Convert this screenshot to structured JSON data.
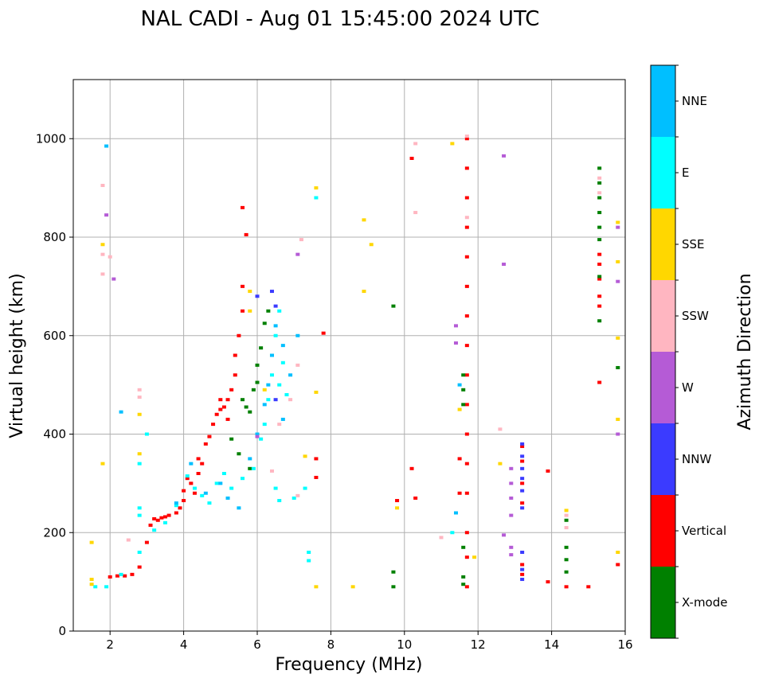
{
  "chart_data": {
    "type": "scatter",
    "title": "NAL CADI - Aug 01 15:45:00 2024 UTC",
    "xlabel": "Frequency (MHz)",
    "ylabel": "Virtual height (km)",
    "xlim": [
      1,
      16
    ],
    "ylim": [
      0,
      1120
    ],
    "xticks": [
      "2",
      "4",
      "6",
      "8",
      "10",
      "12",
      "14",
      "16"
    ],
    "yticks": [
      "0",
      "200",
      "400",
      "600",
      "800",
      "1000"
    ],
    "grid": true,
    "colorbar": {
      "label": "Azimuth Direction",
      "categories": [
        {
          "name": "X-mode",
          "color": "#008000"
        },
        {
          "name": "Vertical",
          "color": "#ff0000"
        },
        {
          "name": "NNW",
          "color": "#3b3bff"
        },
        {
          "name": "W",
          "color": "#b55bd6"
        },
        {
          "name": "SSW",
          "color": "#ffb6c1"
        },
        {
          "name": "SSE",
          "color": "#ffd700"
        },
        {
          "name": "E",
          "color": "#00ffff"
        },
        {
          "name": "NNE",
          "color": "#00bfff"
        }
      ]
    },
    "series": [
      {
        "name": "Vertical",
        "color": "#ff0000",
        "points": [
          [
            2.0,
            110
          ],
          [
            2.2,
            112
          ],
          [
            2.4,
            112
          ],
          [
            2.6,
            115
          ],
          [
            2.8,
            130
          ],
          [
            3.0,
            180
          ],
          [
            3.1,
            215
          ],
          [
            3.2,
            228
          ],
          [
            3.3,
            225
          ],
          [
            3.4,
            230
          ],
          [
            3.5,
            232
          ],
          [
            3.6,
            235
          ],
          [
            3.8,
            240
          ],
          [
            3.9,
            250
          ],
          [
            4.0,
            265
          ],
          [
            4.0,
            285
          ],
          [
            4.1,
            310
          ],
          [
            4.2,
            300
          ],
          [
            4.3,
            280
          ],
          [
            4.4,
            320
          ],
          [
            4.4,
            350
          ],
          [
            4.5,
            340
          ],
          [
            4.6,
            380
          ],
          [
            4.7,
            395
          ],
          [
            4.8,
            420
          ],
          [
            4.9,
            440
          ],
          [
            5.0,
            450
          ],
          [
            5.0,
            470
          ],
          [
            5.1,
            455
          ],
          [
            5.2,
            470
          ],
          [
            5.3,
            490
          ],
          [
            5.2,
            430
          ],
          [
            5.4,
            520
          ],
          [
            5.4,
            560
          ],
          [
            5.5,
            600
          ],
          [
            5.6,
            650
          ],
          [
            5.6,
            700
          ],
          [
            5.7,
            805
          ],
          [
            5.6,
            860
          ],
          [
            7.6,
            350
          ],
          [
            7.6,
            312
          ],
          [
            7.8,
            605
          ],
          [
            9.8,
            265
          ],
          [
            10.2,
            960
          ],
          [
            10.2,
            330
          ],
          [
            10.3,
            270
          ],
          [
            11.5,
            350
          ],
          [
            11.5,
            280
          ],
          [
            11.7,
            1000
          ],
          [
            11.7,
            940
          ],
          [
            11.7,
            880
          ],
          [
            11.7,
            820
          ],
          [
            11.7,
            760
          ],
          [
            11.7,
            700
          ],
          [
            11.7,
            640
          ],
          [
            11.7,
            580
          ],
          [
            11.7,
            520
          ],
          [
            11.7,
            460
          ],
          [
            11.7,
            400
          ],
          [
            11.7,
            340
          ],
          [
            11.7,
            280
          ],
          [
            11.7,
            200
          ],
          [
            11.7,
            150
          ],
          [
            11.7,
            90
          ],
          [
            13.2,
            375
          ],
          [
            13.2,
            345
          ],
          [
            13.2,
            300
          ],
          [
            13.2,
            260
          ],
          [
            13.2,
            135
          ],
          [
            13.2,
            115
          ],
          [
            13.9,
            325
          ],
          [
            13.9,
            100
          ],
          [
            14.4,
            90
          ],
          [
            15.0,
            90
          ],
          [
            15.3,
            505
          ],
          [
            15.3,
            765
          ],
          [
            15.3,
            745
          ],
          [
            15.3,
            715
          ],
          [
            15.3,
            680
          ],
          [
            15.3,
            660
          ],
          [
            15.8,
            135
          ]
        ]
      },
      {
        "name": "X-mode",
        "color": "#008000",
        "points": [
          [
            5.3,
            390
          ],
          [
            5.5,
            360
          ],
          [
            5.6,
            470
          ],
          [
            5.7,
            455
          ],
          [
            5.8,
            445
          ],
          [
            5.9,
            490
          ],
          [
            5.8,
            330
          ],
          [
            6.0,
            505
          ],
          [
            6.0,
            540
          ],
          [
            6.1,
            575
          ],
          [
            6.2,
            625
          ],
          [
            6.3,
            650
          ],
          [
            6.4,
            560
          ],
          [
            9.7,
            660
          ],
          [
            9.7,
            120
          ],
          [
            9.7,
            90
          ],
          [
            11.6,
            520
          ],
          [
            11.6,
            490
          ],
          [
            11.6,
            460
          ],
          [
            11.6,
            170
          ],
          [
            11.6,
            110
          ],
          [
            11.6,
            95
          ],
          [
            14.4,
            170
          ],
          [
            14.4,
            145
          ],
          [
            14.4,
            120
          ],
          [
            14.4,
            225
          ],
          [
            15.3,
            940
          ],
          [
            15.3,
            910
          ],
          [
            15.3,
            880
          ],
          [
            15.3,
            850
          ],
          [
            15.3,
            820
          ],
          [
            15.3,
            795
          ],
          [
            15.3,
            720
          ],
          [
            15.3,
            630
          ],
          [
            15.8,
            535
          ]
        ]
      },
      {
        "name": "E",
        "color": "#00ffff",
        "points": [
          [
            1.6,
            90
          ],
          [
            1.9,
            90
          ],
          [
            2.3,
            115
          ],
          [
            2.8,
            250
          ],
          [
            2.8,
            235
          ],
          [
            2.8,
            340
          ],
          [
            2.8,
            160
          ],
          [
            3.0,
            400
          ],
          [
            3.2,
            205
          ],
          [
            3.5,
            220
          ],
          [
            3.8,
            255
          ],
          [
            4.1,
            315
          ],
          [
            4.3,
            290
          ],
          [
            4.5,
            275
          ],
          [
            4.7,
            260
          ],
          [
            4.9,
            300
          ],
          [
            5.1,
            320
          ],
          [
            5.3,
            290
          ],
          [
            5.6,
            310
          ],
          [
            5.9,
            330
          ],
          [
            6.1,
            390
          ],
          [
            6.2,
            420
          ],
          [
            6.3,
            470
          ],
          [
            6.4,
            520
          ],
          [
            6.5,
            600
          ],
          [
            6.6,
            650
          ],
          [
            6.6,
            500
          ],
          [
            6.7,
            545
          ],
          [
            6.8,
            480
          ],
          [
            6.5,
            290
          ],
          [
            6.6,
            265
          ],
          [
            7.0,
            270
          ],
          [
            7.3,
            290
          ],
          [
            7.4,
            160
          ],
          [
            7.4,
            143
          ],
          [
            7.6,
            880
          ],
          [
            11.3,
            200
          ]
        ]
      },
      {
        "name": "NNE",
        "color": "#00bfff",
        "points": [
          [
            1.9,
            985
          ],
          [
            2.3,
            445
          ],
          [
            3.8,
            260
          ],
          [
            4.2,
            340
          ],
          [
            4.6,
            280
          ],
          [
            5.0,
            300
          ],
          [
            5.2,
            270
          ],
          [
            5.5,
            250
          ],
          [
            5.8,
            350
          ],
          [
            6.0,
            400
          ],
          [
            6.2,
            460
          ],
          [
            6.3,
            500
          ],
          [
            6.4,
            560
          ],
          [
            6.5,
            620
          ],
          [
            6.7,
            580
          ],
          [
            6.7,
            430
          ],
          [
            6.9,
            520
          ],
          [
            7.1,
            600
          ],
          [
            11.4,
            240
          ],
          [
            11.5,
            500
          ]
        ]
      },
      {
        "name": "NNW",
        "color": "#3b3bff",
        "points": [
          [
            6.0,
            680
          ],
          [
            6.4,
            690
          ],
          [
            6.5,
            660
          ],
          [
            6.5,
            470
          ],
          [
            13.2,
            380
          ],
          [
            13.2,
            355
          ],
          [
            13.2,
            330
          ],
          [
            13.2,
            310
          ],
          [
            13.2,
            285
          ],
          [
            13.2,
            250
          ],
          [
            13.2,
            160
          ],
          [
            13.2,
            125
          ],
          [
            13.2,
            105
          ]
        ]
      },
      {
        "name": "W",
        "color": "#b55bd6",
        "points": [
          [
            1.9,
            845
          ],
          [
            2.1,
            715
          ],
          [
            6.0,
            395
          ],
          [
            7.1,
            765
          ],
          [
            11.4,
            620
          ],
          [
            11.4,
            585
          ],
          [
            12.7,
            965
          ],
          [
            12.7,
            745
          ],
          [
            12.7,
            195
          ],
          [
            12.9,
            330
          ],
          [
            12.9,
            300
          ],
          [
            12.9,
            270
          ],
          [
            12.9,
            235
          ],
          [
            12.9,
            170
          ],
          [
            12.9,
            155
          ],
          [
            15.8,
            820
          ],
          [
            15.8,
            710
          ],
          [
            15.8,
            400
          ]
        ]
      },
      {
        "name": "SSW",
        "color": "#ffb6c1",
        "points": [
          [
            1.8,
            905
          ],
          [
            1.8,
            765
          ],
          [
            1.8,
            725
          ],
          [
            2.0,
            760
          ],
          [
            2.5,
            185
          ],
          [
            2.8,
            490
          ],
          [
            2.8,
            475
          ],
          [
            6.4,
            325
          ],
          [
            6.6,
            420
          ],
          [
            6.9,
            470
          ],
          [
            7.1,
            275
          ],
          [
            7.1,
            540
          ],
          [
            7.2,
            795
          ],
          [
            10.3,
            990
          ],
          [
            10.3,
            850
          ],
          [
            11.0,
            190
          ],
          [
            11.7,
            1005
          ],
          [
            11.7,
            840
          ],
          [
            12.6,
            410
          ],
          [
            14.4,
            235
          ],
          [
            14.4,
            210
          ],
          [
            15.3,
            920
          ],
          [
            15.3,
            890
          ]
        ]
      },
      {
        "name": "SSE",
        "color": "#ffd700",
        "points": [
          [
            1.5,
            180
          ],
          [
            1.5,
            105
          ],
          [
            1.5,
            95
          ],
          [
            1.8,
            785
          ],
          [
            1.8,
            340
          ],
          [
            2.8,
            440
          ],
          [
            2.8,
            360
          ],
          [
            5.8,
            690
          ],
          [
            5.8,
            650
          ],
          [
            6.2,
            490
          ],
          [
            7.3,
            355
          ],
          [
            7.6,
            900
          ],
          [
            7.6,
            485
          ],
          [
            7.6,
            90
          ],
          [
            8.6,
            90
          ],
          [
            8.9,
            835
          ],
          [
            8.9,
            690
          ],
          [
            9.1,
            785
          ],
          [
            9.8,
            250
          ],
          [
            11.3,
            990
          ],
          [
            11.5,
            450
          ],
          [
            11.9,
            150
          ],
          [
            12.6,
            340
          ],
          [
            14.4,
            245
          ],
          [
            15.8,
            830
          ],
          [
            15.8,
            750
          ],
          [
            15.8,
            595
          ],
          [
            15.8,
            430
          ],
          [
            15.8,
            160
          ]
        ]
      }
    ]
  }
}
